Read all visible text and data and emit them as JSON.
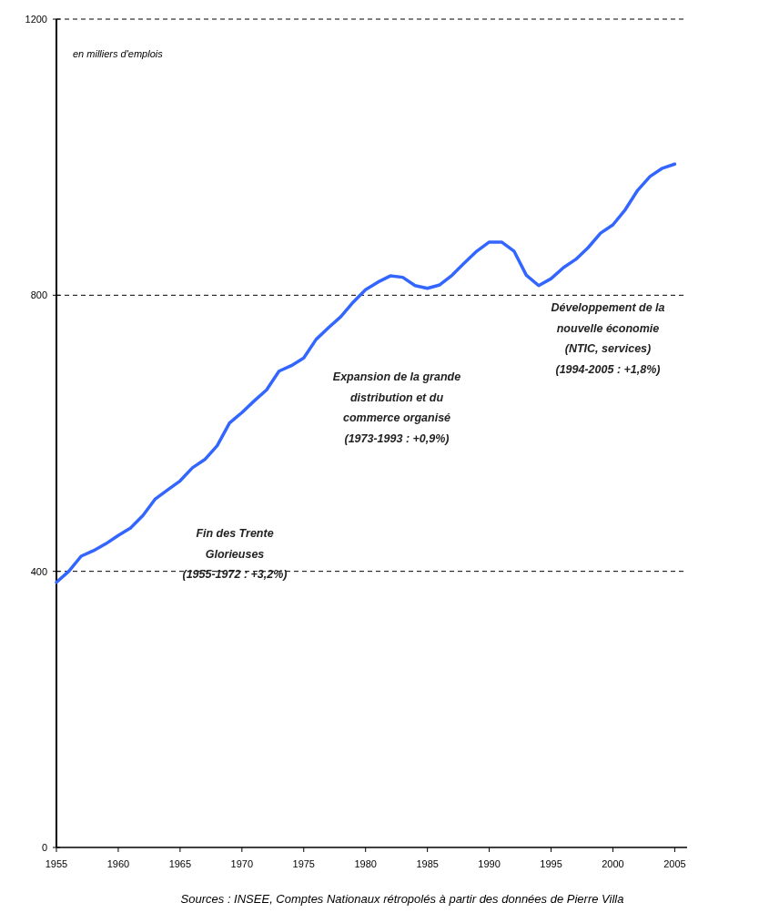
{
  "chart_data": {
    "type": "line",
    "x": [
      1955,
      1956,
      1957,
      1958,
      1959,
      1960,
      1961,
      1962,
      1963,
      1964,
      1965,
      1966,
      1967,
      1968,
      1969,
      1970,
      1971,
      1972,
      1973,
      1974,
      1975,
      1976,
      1977,
      1978,
      1979,
      1980,
      1981,
      1982,
      1983,
      1984,
      1985,
      1986,
      1987,
      1988,
      1989,
      1990,
      1991,
      1992,
      1993,
      1994,
      1995,
      1996,
      1997,
      1998,
      1999,
      2000,
      2001,
      2002,
      2003,
      2004,
      2005
    ],
    "series": [
      {
        "color": "#3366ff",
        "values": [
          384,
          400,
          422,
          430,
          440,
          452,
          463,
          481,
          505,
          518,
          531,
          550,
          562,
          582,
          615,
          630,
          647,
          663,
          690,
          698,
          709,
          736,
          753,
          769,
          790,
          808,
          819,
          828,
          826,
          814,
          810,
          815,
          829,
          847,
          864,
          877,
          877,
          864,
          829,
          814,
          824,
          840,
          852,
          869,
          890,
          902,
          924,
          952,
          972,
          984,
          990
        ]
      }
    ],
    "xlim": [
      1955,
      2006
    ],
    "xticks": [
      1955,
      1960,
      1965,
      1970,
      1975,
      1980,
      1985,
      1990,
      1995,
      2000,
      2005
    ],
    "ylim": [
      0,
      1200
    ],
    "yticks": [
      0,
      400,
      800,
      1200
    ],
    "grid": "y",
    "marker": "none",
    "line_style": "solid",
    "ylabel": "en milliers d'emplois",
    "annotations": [
      "Fin des Trente\nGlorieuses\n(1955-1972 : +3,2%)",
      "Expansion de la grande\ndistribution et du\ncommerce organisé\n(1973-1993 : +0,9%)",
      "Développement de la\nnouvelle économie\n(NTIC, services)\n(1994-2005 : +1,8%)",
      "Sources : INSEE, Comptes Nationaux rétropolés à partir des données de Pierre Villa"
    ]
  }
}
